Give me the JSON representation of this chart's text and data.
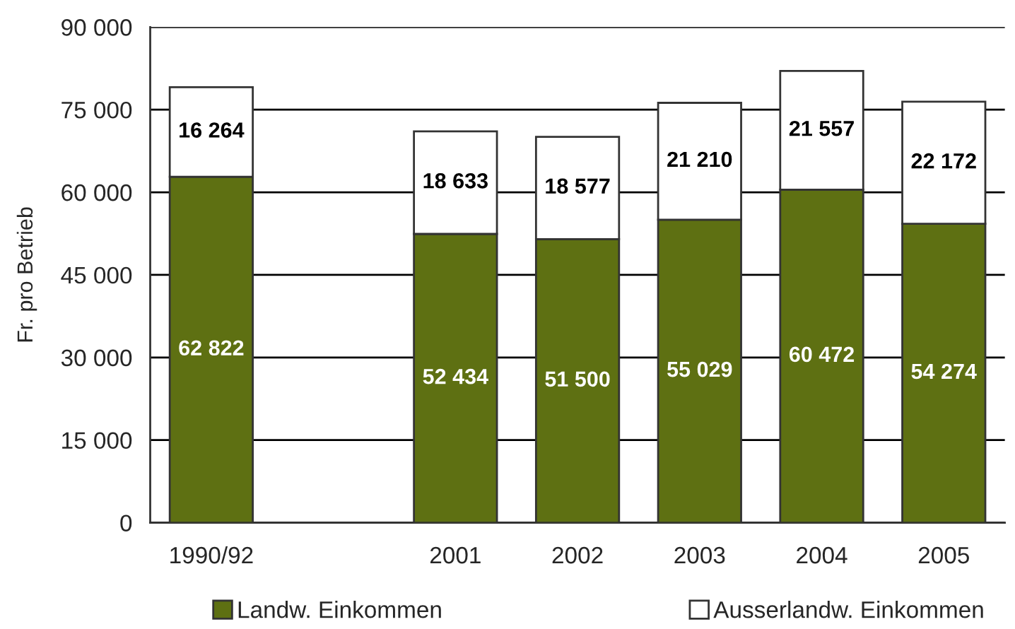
{
  "chart_data": {
    "type": "bar",
    "stacked": true,
    "ylabel": "Fr. pro Betrieb",
    "categories": [
      "1990/92",
      null,
      "2001",
      "2002",
      "2003",
      "2004",
      "2005"
    ],
    "series": [
      {
        "name": "Landw. Einkommen",
        "color": "#5e7012",
        "values": [
          62822,
          null,
          52434,
          51500,
          55029,
          60472,
          54274
        ],
        "value_labels": [
          "62 822",
          null,
          "52 434",
          "51 500",
          "55 029",
          "60 472",
          "54 274"
        ]
      },
      {
        "name": "Ausserlandw. Einkommen",
        "color": "#ffffff",
        "values": [
          16264,
          null,
          18633,
          18577,
          21210,
          21557,
          22172
        ],
        "value_labels": [
          "16 264",
          null,
          "18 633",
          "18 577",
          "21 210",
          "21 557",
          "22 172"
        ]
      }
    ],
    "ylim": [
      0,
      90000
    ],
    "yticks": [
      0,
      {
        "value": 15000,
        "label": "15 000"
      },
      {
        "value": 30000,
        "label": "30 000"
      },
      {
        "value": 45000,
        "label": "45 000"
      },
      {
        "value": 60000,
        "label": "60 000"
      },
      {
        "value": 75000,
        "label": "75 000"
      },
      {
        "value": 90000,
        "label": "90 000"
      }
    ],
    "grid": "y",
    "legend": "bottom"
  }
}
